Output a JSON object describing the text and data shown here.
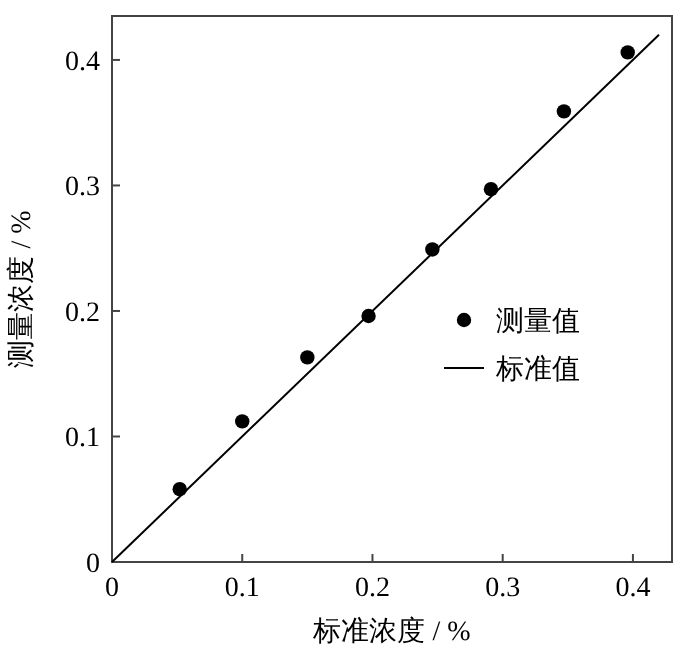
{
  "chart_data": {
    "type": "scatter",
    "xlabel": "标准浓度 / %",
    "ylabel": "测量浓度 / %",
    "xlim": [
      0,
      0.43
    ],
    "ylim": [
      0,
      0.435
    ],
    "xticks": [
      0,
      0.1,
      0.2,
      0.3,
      0.4
    ],
    "yticks": [
      0,
      0.1,
      0.2,
      0.3,
      0.4
    ],
    "legend": "right",
    "grid": false,
    "series": [
      {
        "name": "测量值",
        "marker": "circle",
        "color": "#000000",
        "x": [
          0.052,
          0.1,
          0.15,
          0.197,
          0.246,
          0.291,
          0.347,
          0.396
        ],
        "values": [
          0.058,
          0.112,
          0.163,
          0.196,
          0.249,
          0.297,
          0.359,
          0.406
        ]
      },
      {
        "name": "标准值",
        "type": "line",
        "line_style": "solid",
        "color": "#000000",
        "x": [
          0,
          0.42
        ],
        "values": [
          0,
          0.42
        ]
      }
    ]
  }
}
